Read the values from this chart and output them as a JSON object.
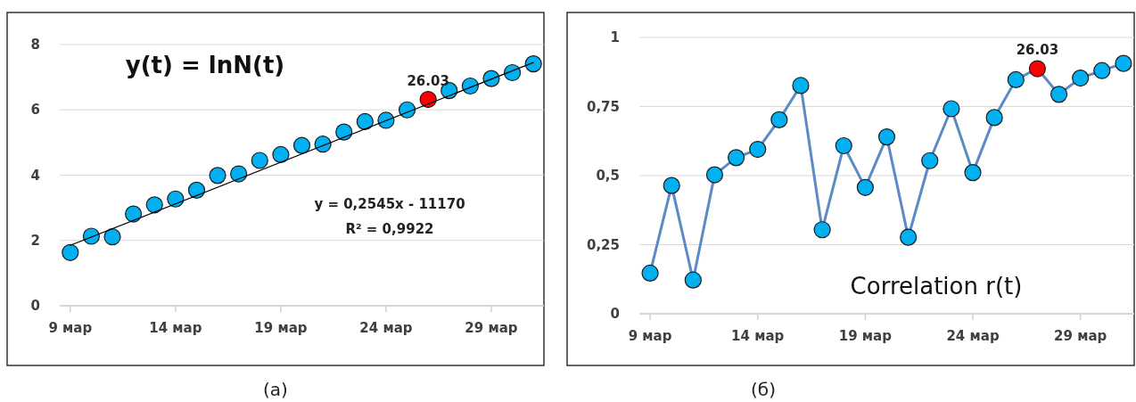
{
  "chart_data": [
    {
      "type": "scatter",
      "title": "y(t) = lnN(t)",
      "x": [
        "--03-09",
        "--03-10",
        "--03-11",
        "--03-12",
        "--03-13",
        "--03-14",
        "--03-15",
        "--03-16",
        "--03-17",
        "--03-18",
        "--03-19",
        "--03-20",
        "--03-21",
        "--03-22",
        "--03-23",
        "--03-24",
        "--03-25",
        "--03-26",
        "--03-27",
        "--03-28",
        "--03-29",
        "--03-30",
        "--03-31"
      ],
      "series": [
        {
          "marker": "circle",
          "colors": [
            "#00b0f0",
            "#00b0f0",
            "#00b0f0",
            "#00b0f0",
            "#00b0f0",
            "#00b0f0",
            "#00b0f0",
            "#00b0f0",
            "#00b0f0",
            "#00b0f0",
            "#00b0f0",
            "#00b0f0",
            "#00b0f0",
            "#00b0f0",
            "#00b0f0",
            "#00b0f0",
            "#00b0f0",
            "#ff0000",
            "#00b0f0",
            "#00b0f0",
            "#00b0f0",
            "#00b0f0",
            "#00b0f0"
          ],
          "values": [
            1.63,
            2.13,
            2.11,
            2.81,
            3.09,
            3.27,
            3.54,
            3.99,
            4.04,
            4.45,
            4.63,
            4.91,
            4.95,
            5.32,
            5.64,
            5.68,
            6.0,
            6.32,
            6.59,
            6.73,
            6.96,
            7.14,
            7.41
          ]
        },
        {
          "type": "line",
          "marker": "none",
          "color": "#000000",
          "x": [
            "--03-09",
            "--03-31"
          ],
          "values": [
            1.85,
            7.45
          ]
        }
      ],
      "xlim": [
        "--03-08T12:00",
        "--03-31T12:00"
      ],
      "xticks": [
        {
          "value": "--03-09",
          "label": "9 мар"
        },
        {
          "value": "--03-14",
          "label": "14 мар"
        },
        {
          "value": "--03-19",
          "label": "19 мар"
        },
        {
          "value": "--03-24",
          "label": "24 мар"
        },
        {
          "value": "--03-29",
          "label": "29 мар"
        }
      ],
      "ylim": [
        0,
        8
      ],
      "yticks": [
        0,
        2,
        4,
        6,
        8
      ],
      "grid": "y",
      "annotations": [
        "y = 0,2545x  - 11170",
        "R² = 0,9922",
        {
          "text": "26.03",
          "x": "--03-26",
          "y": 6.32
        },
        "(a)"
      ]
    },
    {
      "type": "line",
      "title": "Correlation r(t)",
      "x": [
        "--03-09",
        "--03-10",
        "--03-11",
        "--03-12",
        "--03-13",
        "--03-14",
        "--03-15",
        "--03-16",
        "--03-17",
        "--03-18",
        "--03-19",
        "--03-20",
        "--03-21",
        "--03-22",
        "--03-23",
        "--03-24",
        "--03-25",
        "--03-26",
        "--03-27",
        "--03-28",
        "--03-29",
        "--03-30",
        "--03-31"
      ],
      "series": [
        {
          "marker": "circle",
          "color": "#5b8ac6",
          "colors": [
            "#00b0f0",
            "#00b0f0",
            "#00b0f0",
            "#00b0f0",
            "#00b0f0",
            "#00b0f0",
            "#00b0f0",
            "#00b0f0",
            "#00b0f0",
            "#00b0f0",
            "#00b0f0",
            "#00b0f0",
            "#00b0f0",
            "#00b0f0",
            "#00b0f0",
            "#00b0f0",
            "#00b0f0",
            "#00b0f0",
            "#ff0000",
            "#00b0f0",
            "#00b0f0",
            "#00b0f0",
            "#00b0f0"
          ],
          "values": [
            0.147,
            0.464,
            0.122,
            0.503,
            0.565,
            0.595,
            0.702,
            0.826,
            0.304,
            0.608,
            0.457,
            0.64,
            0.277,
            0.554,
            0.742,
            0.511,
            0.71,
            0.847,
            0.887,
            0.794,
            0.853,
            0.88,
            0.906
          ]
        }
      ],
      "xlim": [
        "--03-08T12:00",
        "--03-31T12:00"
      ],
      "xticks": [
        {
          "value": "--03-09",
          "label": "9 мар"
        },
        {
          "value": "--03-14",
          "label": "14 мар"
        },
        {
          "value": "--03-19",
          "label": "19 мар"
        },
        {
          "value": "--03-24",
          "label": "24 мар"
        },
        {
          "value": "--03-29",
          "label": "29 мар"
        }
      ],
      "ylim": [
        0,
        1
      ],
      "yticks": [
        0,
        {
          "value": 0.25,
          "label": "0,25"
        },
        {
          "value": 0.5,
          "label": "0,5"
        },
        {
          "value": 0.75,
          "label": "0,75"
        },
        1
      ],
      "grid": "y",
      "line_style": "solid",
      "annotations": [
        {
          "text": "26.03",
          "x": "--03-27",
          "y": 0.887
        },
        "(б)"
      ]
    }
  ]
}
